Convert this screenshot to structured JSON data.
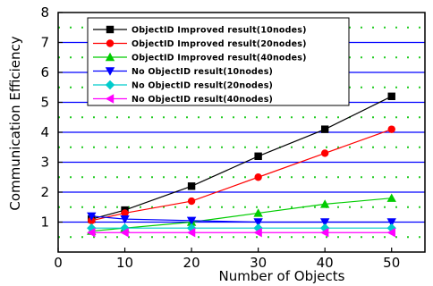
{
  "chart_data": {
    "type": "line",
    "xlabel": "Number of Objects",
    "ylabel": "Communication Efficiency",
    "xlim": [
      0,
      55
    ],
    "ylim": [
      0,
      8
    ],
    "x": [
      5,
      10,
      20,
      30,
      40,
      50
    ],
    "xticks": [
      "0",
      "10",
      "20",
      "30",
      "40",
      "50"
    ],
    "yticks": [
      "1",
      "2",
      "3",
      "4",
      "5",
      "6",
      "7",
      "8"
    ],
    "grid": {
      "major_y": [
        1,
        2,
        3,
        4,
        5,
        6,
        7
      ],
      "major_color": "#0000ff",
      "minor_y": [
        0.5,
        1.5,
        2.5,
        3.5,
        4.5,
        5.5,
        6.5,
        7.5
      ],
      "minor_color": "#22cc22",
      "minor_style": "dotted"
    },
    "legend_position": "top-center",
    "series": [
      {
        "name": "ObjectID Improved result(10nodes)",
        "color": "#000000",
        "marker": "square",
        "values": [
          1.1,
          1.4,
          2.2,
          3.2,
          4.1,
          5.2
        ]
      },
      {
        "name": "ObjectID Improved result(20nodes)",
        "color": "#ff0000",
        "marker": "circle",
        "values": [
          1.05,
          1.3,
          1.7,
          2.5,
          3.3,
          4.1
        ]
      },
      {
        "name": "ObjectID Improved result(40nodes)",
        "color": "#00cc00",
        "marker": "triangle-up",
        "values": [
          0.7,
          0.8,
          1.0,
          1.3,
          1.6,
          1.8
        ]
      },
      {
        "name": "No ObjectID result(10nodes)",
        "color": "#0000ff",
        "marker": "triangle-down",
        "values": [
          1.2,
          1.1,
          1.05,
          1.0,
          1.0,
          1.0
        ]
      },
      {
        "name": "No ObjectID result(20nodes)",
        "color": "#00cccc",
        "marker": "diamond",
        "values": [
          0.8,
          0.8,
          0.8,
          0.8,
          0.8,
          0.8
        ]
      },
      {
        "name": "No ObjectID result(40nodes)",
        "color": "#ff00ff",
        "marker": "triangle-left",
        "values": [
          0.65,
          0.65,
          0.65,
          0.65,
          0.65,
          0.65
        ]
      }
    ]
  }
}
